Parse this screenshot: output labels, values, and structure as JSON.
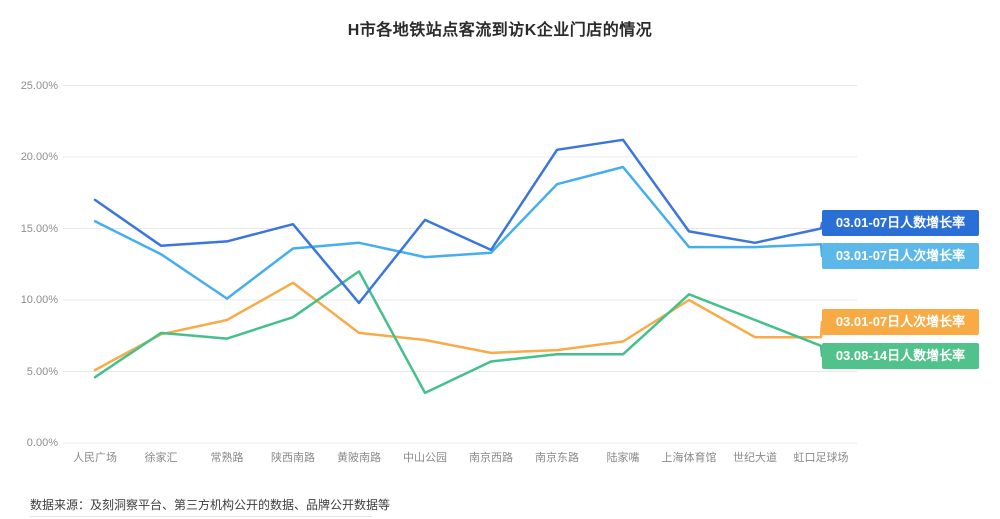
{
  "title": "H市各地铁站点客流到访K企业门店的情况",
  "source": "数据来源：及刻洞察平台、第三方机构公开的数据、品牌公开数据等",
  "chart_data": {
    "type": "line",
    "title": "H市各地铁站点客流到访K企业门店的情况",
    "xlabel": "",
    "ylabel": "",
    "ylim": [
      0,
      25
    ],
    "grid": true,
    "legend_position": "right-end-labels",
    "y_ticks": [
      "0.00%",
      "5.00%",
      "10.00%",
      "15.00%",
      "20.00%",
      "25.00%"
    ],
    "categories": [
      "人民广场",
      "徐家汇",
      "常熟路",
      "陕西南路",
      "黄陂南路",
      "中山公园",
      "南京西路",
      "南京东路",
      "陆家嘴",
      "上海体育馆",
      "世纪大道",
      "虹口足球场"
    ],
    "series": [
      {
        "name": "03.01-07日人数增长率",
        "color": "#3b76dd",
        "label_bg": "#2a6fd6",
        "values": [
          17.0,
          13.8,
          14.1,
          15.3,
          9.8,
          15.6,
          13.5,
          20.5,
          21.2,
          14.8,
          14.0,
          15.0
        ]
      },
      {
        "name": "03.01-07日人次增长率",
        "color": "#45aeee",
        "label_bg": "#5bb8e9",
        "values": [
          15.5,
          13.2,
          10.1,
          13.6,
          14.0,
          13.0,
          13.3,
          18.1,
          19.3,
          13.7,
          13.7,
          13.9
        ]
      },
      {
        "name": "03.01-07日人次增长率",
        "color": "#f8ab48",
        "label_bg": "#f8aa45",
        "values": [
          5.1,
          7.6,
          8.6,
          11.2,
          7.7,
          7.2,
          6.3,
          6.5,
          7.1,
          10.0,
          7.4,
          7.4
        ]
      },
      {
        "name": "03.08-14日人数增长率",
        "color": "#45c08c",
        "label_bg": "#52c28d",
        "values": [
          4.6,
          7.7,
          7.3,
          8.8,
          12.0,
          3.5,
          5.7,
          6.2,
          6.2,
          10.4,
          8.6,
          6.8
        ]
      }
    ]
  }
}
